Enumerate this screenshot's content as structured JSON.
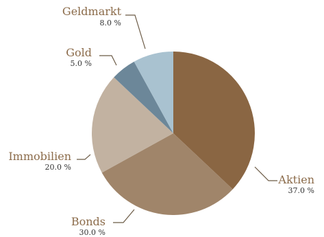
{
  "chart_data": {
    "type": "pie",
    "title": "",
    "start_angle_deg": 0,
    "direction": "clockwise",
    "label_color": "#8B6B4A",
    "leader_color": "#6B5A45",
    "slices": [
      {
        "label": "Aktien",
        "value": 37.0,
        "display": "37.0 %",
        "color": "#8A6643"
      },
      {
        "label": "Bonds",
        "value": 30.0,
        "display": "30.0 %",
        "color": "#A0856A"
      },
      {
        "label": "Immobilien",
        "value": 20.0,
        "display": "20.0 %",
        "color": "#C2B2A1"
      },
      {
        "label": "Gold",
        "value": 5.0,
        "display": "5.0 %",
        "color": "#6C8799"
      },
      {
        "label": "Geldmarkt",
        "value": 8.0,
        "display": "8.0 %",
        "color": "#A9C2D0"
      }
    ]
  }
}
